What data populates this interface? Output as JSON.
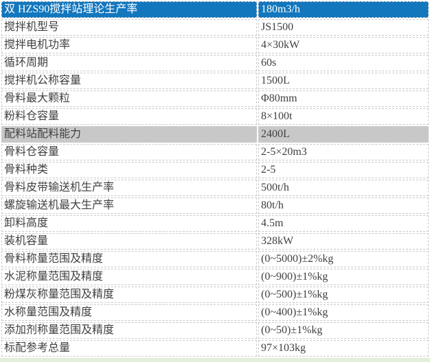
{
  "colors": {
    "page_background": "#e4efda",
    "table_background": "#ffffff",
    "highlight_row_bg": "#1377be",
    "highlight_row_text": "#ffffff",
    "section_row_bg": "#c8c8c8",
    "body_text": "#404040",
    "cell_border": "#c9c9c9"
  },
  "spec_table": {
    "rows": [
      {
        "label": "双 HZS90搅拌站理论生产率",
        "value": "180m3/h",
        "style": "highlight"
      },
      {
        "label": "搅拌机型号",
        "value": "JS1500",
        "style": "normal"
      },
      {
        "label": "搅拌电机功率",
        "value": "4×30kW",
        "style": "normal"
      },
      {
        "label": "循环周期",
        "value": "60s",
        "style": "normal"
      },
      {
        "label": "搅拌机公称容量",
        "value": "1500L",
        "style": "normal"
      },
      {
        "label": "骨料最大颗粒",
        "value": "Φ80mm",
        "style": "normal"
      },
      {
        "label": "粉料仓容量",
        "value": "8×100t",
        "style": "normal"
      },
      {
        "label": "配料站配料能力",
        "value": "2400L",
        "style": "section"
      },
      {
        "label": "骨料仓容量",
        "value": "2-5×20m3",
        "style": "normal"
      },
      {
        "label": "骨料种类",
        "value": "2-5",
        "style": "normal"
      },
      {
        "label": "骨料皮带输送机生产率",
        "value": "500t/h",
        "style": "normal"
      },
      {
        "label": "螺旋输送机最大生产率",
        "value": "80t/h",
        "style": "normal"
      },
      {
        "label": "卸料高度",
        "value": "4.5m",
        "style": "normal"
      },
      {
        "label": "装机容量",
        "value": "328kW",
        "style": "normal"
      },
      {
        "label": "骨料称量范围及精度",
        "value": "(0~5000)±2%kg",
        "style": "normal"
      },
      {
        "label": "水泥称量范围及精度",
        "value": "(0~900)±1%kg",
        "style": "normal"
      },
      {
        "label": "粉煤灰称量范围及精度",
        "value": "(0~500)±1%kg",
        "style": "normal"
      },
      {
        "label": "水称量范围及精度",
        "value": "(0~400)±1%kg",
        "style": "normal"
      },
      {
        "label": "添加剂称量范围及精度",
        "value": "(0~50)±1%kg",
        "style": "normal"
      },
      {
        "label": "标配参考总量",
        "value": "97×103kg",
        "style": "normal"
      }
    ]
  }
}
